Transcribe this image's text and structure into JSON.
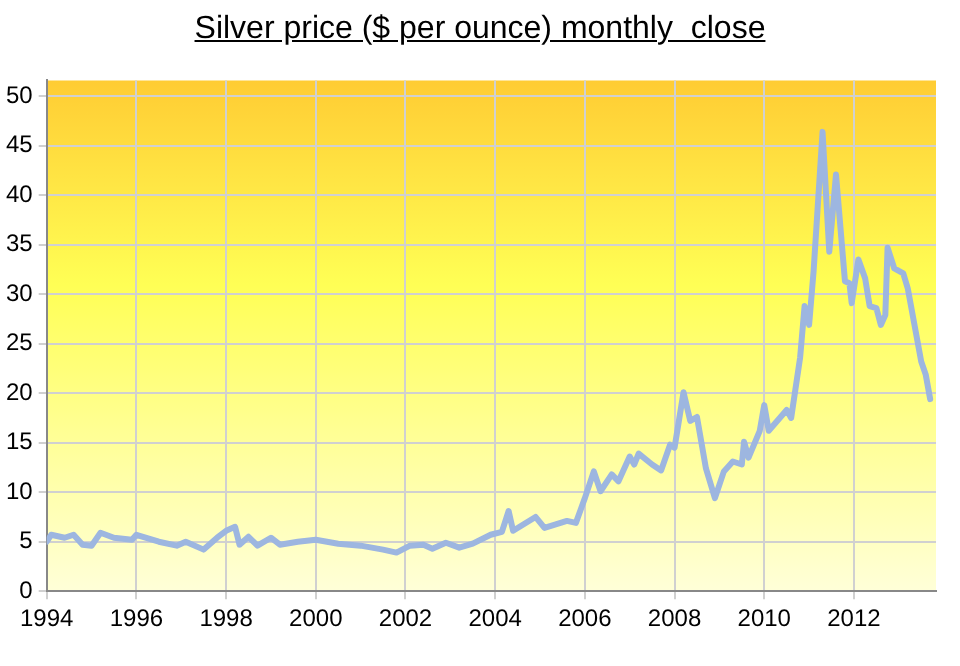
{
  "chart_data": {
    "type": "line",
    "title": "Silver price ($ per ounce) monthly  close",
    "x": [
      1994.0,
      1994.1,
      1994.4,
      1994.6,
      1994.8,
      1995.0,
      1995.2,
      1995.5,
      1995.9,
      1996.0,
      1996.5,
      1996.9,
      1997.1,
      1997.5,
      1997.8,
      1998.0,
      1998.2,
      1998.3,
      1998.5,
      1998.7,
      1999.0,
      1999.2,
      1999.6,
      2000.0,
      2000.5,
      2001.0,
      2001.5,
      2001.8,
      2002.1,
      2002.4,
      2002.6,
      2002.9,
      2003.2,
      2003.5,
      2003.9,
      2004.15,
      2004.3,
      2004.4,
      2004.9,
      2005.1,
      2005.6,
      2005.8,
      2006.0,
      2006.2,
      2006.35,
      2006.6,
      2006.75,
      2007.0,
      2007.1,
      2007.2,
      2007.5,
      2007.7,
      2007.9,
      2008.0,
      2008.2,
      2008.35,
      2008.5,
      2008.7,
      2008.9,
      2009.1,
      2009.3,
      2009.5,
      2009.55,
      2009.65,
      2009.9,
      2010.0,
      2010.1,
      2010.5,
      2010.6,
      2010.8,
      2010.9,
      2011.0,
      2011.1,
      2011.3,
      2011.45,
      2011.6,
      2011.8,
      2011.9,
      2011.95,
      2012.1,
      2012.25,
      2012.35,
      2012.5,
      2012.6,
      2012.7,
      2012.75,
      2012.9,
      2013.1,
      2013.2,
      2013.5,
      2013.6,
      2013.7
    ],
    "series": [
      {
        "color": "#9db6e0",
        "values": [
          5.0,
          5.7,
          5.4,
          5.7,
          4.7,
          4.6,
          5.9,
          5.4,
          5.2,
          5.7,
          5.0,
          4.6,
          5.0,
          4.2,
          5.4,
          6.1,
          6.5,
          4.7,
          5.5,
          4.6,
          5.4,
          4.7,
          5.0,
          5.2,
          4.8,
          4.6,
          4.2,
          3.9,
          4.6,
          4.7,
          4.3,
          4.9,
          4.4,
          4.8,
          5.7,
          6.0,
          8.1,
          6.1,
          7.5,
          6.4,
          7.1,
          6.9,
          9.4,
          12.1,
          10.1,
          11.8,
          11.1,
          13.6,
          12.8,
          13.9,
          12.8,
          12.2,
          14.8,
          14.5,
          20.1,
          17.2,
          17.6,
          12.4,
          9.4,
          12.1,
          13.1,
          12.8,
          15.1,
          13.5,
          16.2,
          18.8,
          16.2,
          18.3,
          17.5,
          23.6,
          28.8,
          26.9,
          32.3,
          46.4,
          34.3,
          42.1,
          31.3,
          31.1,
          29.1,
          33.5,
          31.6,
          28.8,
          28.6,
          26.9,
          27.9,
          34.7,
          32.6,
          32.1,
          30.6,
          23.2,
          21.9,
          19.4
        ]
      }
    ],
    "xlim": [
      1994,
      2013.83
    ],
    "xticks": [
      1994,
      1996,
      1998,
      2000,
      2002,
      2004,
      2006,
      2008,
      2010,
      2012
    ],
    "ylim": [
      0,
      51.6
    ],
    "yticks": [
      0,
      5,
      10,
      15,
      20,
      25,
      30,
      35,
      40,
      45,
      50
    ],
    "grid": true,
    "marker": "none",
    "line_style": "solid"
  }
}
